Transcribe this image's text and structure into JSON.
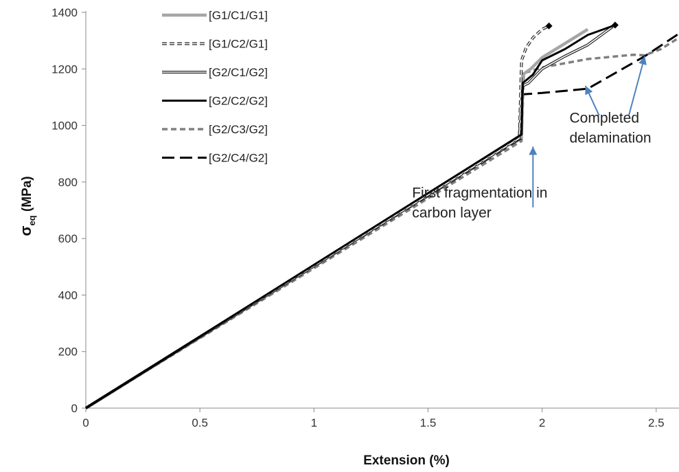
{
  "chart_data": {
    "type": "line",
    "title": "",
    "xlabel": "Extension (%)",
    "ylabel_main": "σ",
    "ylabel_sub": "eq",
    "ylabel_unit": " (MPa)",
    "xlim": [
      0,
      2.6
    ],
    "ylim": [
      0,
      1400
    ],
    "xticks": [
      0,
      0.5,
      1,
      1.5,
      2,
      2.5
    ],
    "yticks": [
      0,
      200,
      400,
      600,
      800,
      1000,
      1200,
      1400
    ],
    "grid": false,
    "legend_position": "top-left",
    "series": [
      {
        "name": "[G1/C1/G1]",
        "color": "#a6a6a6",
        "style": "thick",
        "marker": false,
        "points": [
          [
            0,
            0
          ],
          [
            1.91,
            960
          ],
          [
            1.915,
            1180
          ],
          [
            1.95,
            1200
          ],
          [
            2.0,
            1240
          ],
          [
            2.1,
            1290
          ],
          [
            2.2,
            1340
          ]
        ]
      },
      {
        "name": "[G1/C2/G1]",
        "color": "#222222",
        "style": "double-dashed",
        "marker": true,
        "points": [
          [
            0,
            0
          ],
          [
            1.9,
            955
          ],
          [
            1.91,
            1230
          ],
          [
            1.93,
            1275
          ],
          [
            1.96,
            1310
          ],
          [
            2.0,
            1340
          ],
          [
            2.03,
            1352
          ]
        ]
      },
      {
        "name": "[G2/C1/G2]",
        "color": "#222222",
        "style": "double",
        "marker": false,
        "points": [
          [
            0,
            0
          ],
          [
            1.9,
            958
          ],
          [
            1.915,
            1140
          ],
          [
            1.94,
            1150
          ],
          [
            2.0,
            1200
          ],
          [
            2.1,
            1245
          ],
          [
            2.2,
            1285
          ],
          [
            2.31,
            1350
          ]
        ]
      },
      {
        "name": "[G2/C2/G2]",
        "color": "#000000",
        "style": "solid",
        "marker": true,
        "points": [
          [
            0,
            0
          ],
          [
            1.91,
            968
          ],
          [
            1.915,
            1150
          ],
          [
            1.96,
            1180
          ],
          [
            2.0,
            1230
          ],
          [
            2.1,
            1270
          ],
          [
            2.2,
            1320
          ],
          [
            2.32,
            1355
          ]
        ]
      },
      {
        "name": "[G2/C3/G2]",
        "color": "#808080",
        "style": "dashed",
        "marker": false,
        "points": [
          [
            0,
            0
          ],
          [
            1.91,
            945
          ],
          [
            1.92,
            1185
          ],
          [
            2.0,
            1205
          ],
          [
            2.2,
            1235
          ],
          [
            2.4,
            1250
          ],
          [
            2.45,
            1248
          ],
          [
            2.52,
            1270
          ],
          [
            2.6,
            1310
          ]
        ]
      },
      {
        "name": "[G2/C4/G2]",
        "color": "#000000",
        "style": "long-dashed",
        "marker": false,
        "points": [
          [
            0,
            0
          ],
          [
            1.91,
            955
          ],
          [
            1.915,
            1110
          ],
          [
            2.0,
            1115
          ],
          [
            2.2,
            1130
          ],
          [
            2.45,
            1245
          ],
          [
            2.6,
            1325
          ]
        ]
      }
    ],
    "annotations": [
      {
        "lines": [
          "First fragmentation in",
          "carbon layer"
        ],
        "text_at": [
          1.43,
          745
        ],
        "arrow_from": [
          1.96,
          710
        ],
        "arrow_to": [
          1.96,
          925
        ],
        "color": "#4f81bd"
      },
      {
        "lines": [
          "Completed",
          "delamination"
        ],
        "text_at": [
          2.12,
          1010
        ],
        "arrow_from": [
          2.25,
          1035
        ],
        "arrow_to": [
          2.19,
          1140
        ],
        "arrow2_from": [
          2.38,
          1035
        ],
        "arrow2_to": [
          2.45,
          1245
        ],
        "color": "#4f81bd"
      }
    ]
  }
}
